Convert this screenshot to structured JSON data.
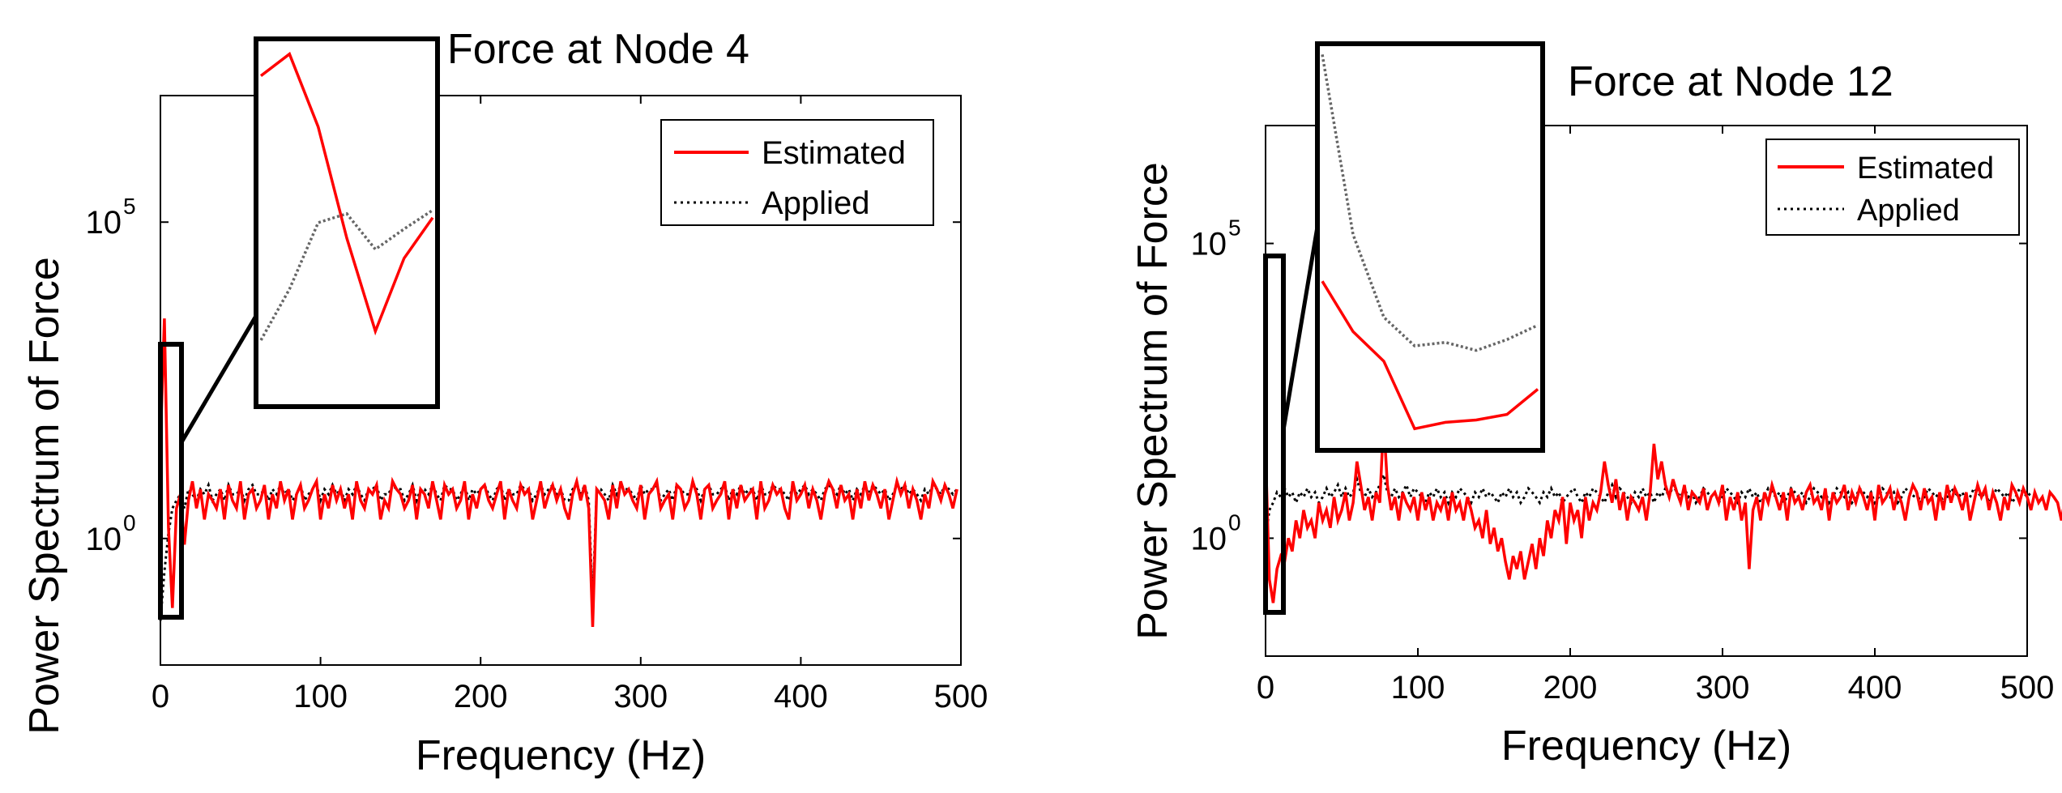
{
  "chart_data": [
    {
      "type": "line",
      "title": "Force at Node 4",
      "xlabel": "Frequency (Hz)",
      "ylabel": "Power Spectrum of Force",
      "yscale": "log",
      "xlim": [
        0,
        500
      ],
      "ylim": [
        0.01,
        10000000
      ],
      "x_ticks": [
        "0",
        "100",
        "200",
        "300",
        "400",
        "500"
      ],
      "y_ticks": [
        {
          "base": "10",
          "exp": "0"
        },
        {
          "base": "10",
          "exp": "5"
        }
      ],
      "legend": {
        "position": "top-right",
        "entries": [
          "Estimated",
          "Applied"
        ]
      },
      "series": [
        {
          "name": "Estimated",
          "color": "#ff0000",
          "style": "solid",
          "x_step": 2.5,
          "values": [
            30,
            3000,
            1.5,
            0.08,
            3,
            5,
            0.8,
            4,
            8,
            3,
            6,
            2,
            5,
            4,
            3,
            6,
            2,
            7,
            4,
            3,
            8,
            2,
            5,
            6,
            3,
            4,
            7,
            2,
            5,
            3,
            8,
            4,
            6,
            2,
            5,
            7,
            3,
            4,
            6,
            8,
            2,
            5,
            3,
            7,
            4,
            6,
            3,
            5,
            2,
            8,
            4,
            3,
            6,
            5,
            7,
            2,
            4,
            3,
            8,
            6,
            5,
            3,
            4,
            7,
            2,
            6,
            5,
            3,
            8,
            4,
            2,
            7,
            5,
            6,
            3,
            4,
            8,
            2,
            5,
            3,
            6,
            7,
            4,
            3,
            5,
            8,
            2,
            6,
            4,
            3,
            7,
            5,
            6,
            2,
            4,
            8,
            3,
            5,
            7,
            4,
            6,
            3,
            2,
            5,
            8,
            4,
            7,
            3,
            0.04,
            6,
            5,
            4,
            2,
            7,
            3,
            8,
            5,
            6,
            4,
            3,
            7,
            2,
            5,
            6,
            8,
            3,
            4,
            5,
            2,
            7,
            6,
            3,
            4,
            8,
            5,
            2,
            6,
            7,
            3,
            4,
            5,
            8,
            2,
            6,
            3,
            7,
            4,
            5,
            6,
            2,
            8,
            3,
            4,
            7,
            5,
            6,
            3,
            2,
            8,
            4,
            5,
            7,
            3,
            6,
            4,
            2,
            5,
            8,
            6,
            3,
            7,
            4,
            5,
            2,
            6,
            3,
            8,
            4,
            7,
            5,
            3,
            6,
            2,
            4,
            8,
            5,
            7,
            3,
            6,
            4,
            2,
            5,
            3,
            8,
            6,
            4,
            7,
            5,
            3,
            6
          ]
        },
        {
          "name": "Applied",
          "color": "#000000",
          "style": "dotted",
          "x_step": 2.5,
          "values": [
            0.05,
            0.3,
            1.2,
            3,
            4,
            5,
            3,
            6,
            5,
            4,
            6,
            5,
            7,
            4,
            5,
            6,
            4,
            7,
            5,
            5,
            6,
            4,
            6,
            7,
            5,
            5,
            6,
            4,
            6,
            5,
            7,
            5,
            6,
            4,
            5,
            7,
            4,
            5,
            6,
            7,
            4,
            6,
            5,
            7,
            5,
            6,
            4,
            6,
            5,
            7,
            5,
            4,
            6,
            6,
            7,
            4,
            5,
            5,
            7,
            6,
            6,
            4,
            5,
            7,
            4,
            6,
            6,
            5,
            7,
            5,
            4,
            7,
            6,
            6,
            4,
            5,
            7,
            4,
            6,
            5,
            6,
            7,
            5,
            4,
            6,
            7,
            4,
            6,
            5,
            5,
            7,
            6,
            6,
            4,
            5,
            7,
            5,
            6,
            7,
            5,
            6,
            4,
            4,
            6,
            7,
            5,
            7,
            4,
            0.1,
            6,
            6,
            5,
            4,
            7,
            5,
            7,
            6,
            6,
            5,
            4,
            7,
            5,
            6,
            6,
            7,
            4,
            5,
            6,
            4,
            7,
            6,
            5,
            5,
            7,
            6,
            4,
            6,
            7,
            5,
            5,
            6,
            7,
            4,
            6,
            5,
            7,
            5,
            6,
            6,
            4,
            7,
            5,
            5,
            7,
            6,
            6,
            5,
            4,
            7,
            5,
            6,
            7,
            5,
            6,
            5,
            4,
            6,
            7,
            6,
            5,
            7,
            5,
            6,
            4,
            6,
            5,
            7,
            5,
            7,
            6,
            5,
            6,
            4,
            5,
            7,
            6,
            7,
            5,
            6,
            5,
            4,
            6,
            5,
            7,
            6,
            5,
            7,
            6,
            5,
            6
          ]
        }
      ],
      "inset": {
        "series": [
          {
            "name": "Estimated",
            "values": [
              3000,
              8000,
              300,
              2,
              0.03,
              0.8,
              5
            ]
          },
          {
            "name": "Applied",
            "values": [
              0.02,
              0.2,
              4,
              6,
              1.2,
              3,
              7
            ]
          }
        ]
      }
    },
    {
      "type": "line",
      "title": "Force at Node 12",
      "xlabel": "Frequency (Hz)",
      "ylabel": "Power Spectrum of Force",
      "yscale": "log",
      "xlim": [
        0,
        500
      ],
      "ylim": [
        0.01,
        10000000
      ],
      "x_ticks": [
        "0",
        "100",
        "200",
        "300",
        "400",
        "500"
      ],
      "y_ticks": [
        {
          "base": "10",
          "exp": "0"
        },
        {
          "base": "10",
          "exp": "5"
        }
      ],
      "legend": {
        "position": "top-right",
        "entries": [
          "Estimated",
          "Applied"
        ]
      },
      "series": [
        {
          "name": "Estimated",
          "color": "#ff0000",
          "style": "solid",
          "x_step": 2.5,
          "values": [
            30,
            0.2,
            0.08,
            0.3,
            0.5,
            0.4,
            1,
            0.6,
            2,
            1,
            3,
            1.5,
            2,
            1,
            4,
            2,
            3,
            1.5,
            5,
            2,
            3,
            6,
            2,
            4,
            20,
            8,
            3,
            5,
            2,
            6,
            4,
            100,
            8,
            3,
            5,
            2,
            6,
            4,
            3,
            5,
            2,
            6,
            3,
            5,
            2,
            4,
            3,
            5,
            2,
            6,
            3,
            4,
            2,
            5,
            3,
            1.5,
            2,
            1,
            3,
            0.8,
            1.5,
            0.6,
            1,
            0.4,
            0.2,
            0.5,
            0.3,
            0.6,
            0.2,
            0.4,
            0.8,
            0.3,
            1,
            0.5,
            2,
            1,
            3,
            2,
            5,
            0.8,
            4,
            2,
            3,
            1,
            5,
            2,
            4,
            3,
            6,
            20,
            8,
            4,
            10,
            3,
            6,
            2,
            5,
            4,
            3,
            5,
            2,
            6,
            40,
            10,
            20,
            8,
            5,
            10,
            6,
            4,
            8,
            3,
            6,
            5,
            4,
            7,
            3,
            5,
            6,
            4,
            8,
            2,
            5,
            3,
            6,
            2,
            4,
            0.3,
            3,
            5,
            2,
            6,
            4,
            8,
            5,
            3,
            6,
            2,
            7,
            4,
            5,
            3,
            6,
            8,
            4,
            5,
            3,
            7,
            2,
            6,
            4,
            5,
            8,
            3,
            6,
            4,
            7,
            5,
            3,
            6,
            2,
            8,
            4,
            5,
            7,
            3,
            6,
            4,
            2,
            5,
            8,
            6,
            3,
            7,
            4,
            5,
            2,
            6,
            3,
            8,
            4,
            7,
            5,
            3,
            6,
            2,
            4,
            8,
            5,
            7,
            3,
            6,
            4,
            2,
            5,
            3,
            8,
            6,
            4,
            7,
            5,
            3,
            6,
            4,
            5,
            3,
            6,
            5,
            4,
            2,
            5,
            3,
            6
          ]
        },
        {
          "name": "Applied",
          "color": "#000000",
          "style": "dotted",
          "x_step": 2.5,
          "values": [
            1,
            3,
            4,
            6,
            5,
            7,
            5,
            6,
            4,
            6,
            5,
            7,
            5,
            6,
            4,
            5,
            7,
            5,
            6,
            8,
            5,
            7,
            5,
            6,
            10,
            6,
            5,
            7,
            5,
            6,
            8,
            12,
            6,
            5,
            7,
            5,
            6,
            8,
            5,
            7,
            6,
            5,
            4,
            6,
            5,
            7,
            5,
            6,
            4,
            6,
            5,
            7,
            6,
            5,
            4,
            6,
            5,
            7,
            5,
            6,
            5,
            4,
            6,
            5,
            7,
            5,
            6,
            4,
            5,
            7,
            6,
            5,
            4,
            6,
            5,
            7,
            5,
            6,
            4,
            5,
            6,
            7,
            5,
            4,
            6,
            5,
            7,
            6,
            5,
            4,
            6,
            8,
            5,
            7,
            6,
            5,
            4,
            6,
            5,
            7,
            5,
            6,
            4,
            6,
            5,
            7,
            5,
            8,
            6,
            5,
            7,
            5,
            6,
            4,
            5,
            7,
            6,
            5,
            6,
            4,
            5,
            7,
            6,
            5,
            4,
            6,
            5,
            7,
            5,
            6,
            4,
            5,
            7,
            6,
            5,
            6,
            4,
            5,
            7,
            6,
            5,
            6,
            4,
            5,
            7,
            6,
            5,
            6,
            4,
            5,
            7,
            6,
            5,
            6,
            4,
            5,
            7,
            6,
            5,
            6,
            4,
            5,
            7,
            6,
            5,
            6,
            4,
            5,
            7,
            6,
            5,
            6,
            4,
            5,
            7,
            6,
            5,
            6,
            4,
            5,
            7,
            6,
            5,
            6,
            4,
            5,
            7,
            6,
            5,
            6,
            4,
            5,
            7,
            6,
            5,
            6,
            4,
            5,
            7,
            6,
            5,
            6
          ]
        }
      ],
      "inset": {
        "series": [
          {
            "name": "Estimated",
            "values": [
              50,
              2,
              0.3,
              0.004,
              0.006,
              0.007,
              0.01,
              0.05
            ]
          },
          {
            "name": "Applied",
            "values": [
              100000000,
              1000,
              5,
              0.8,
              1,
              0.6,
              1.2,
              3
            ]
          }
        ]
      }
    }
  ]
}
